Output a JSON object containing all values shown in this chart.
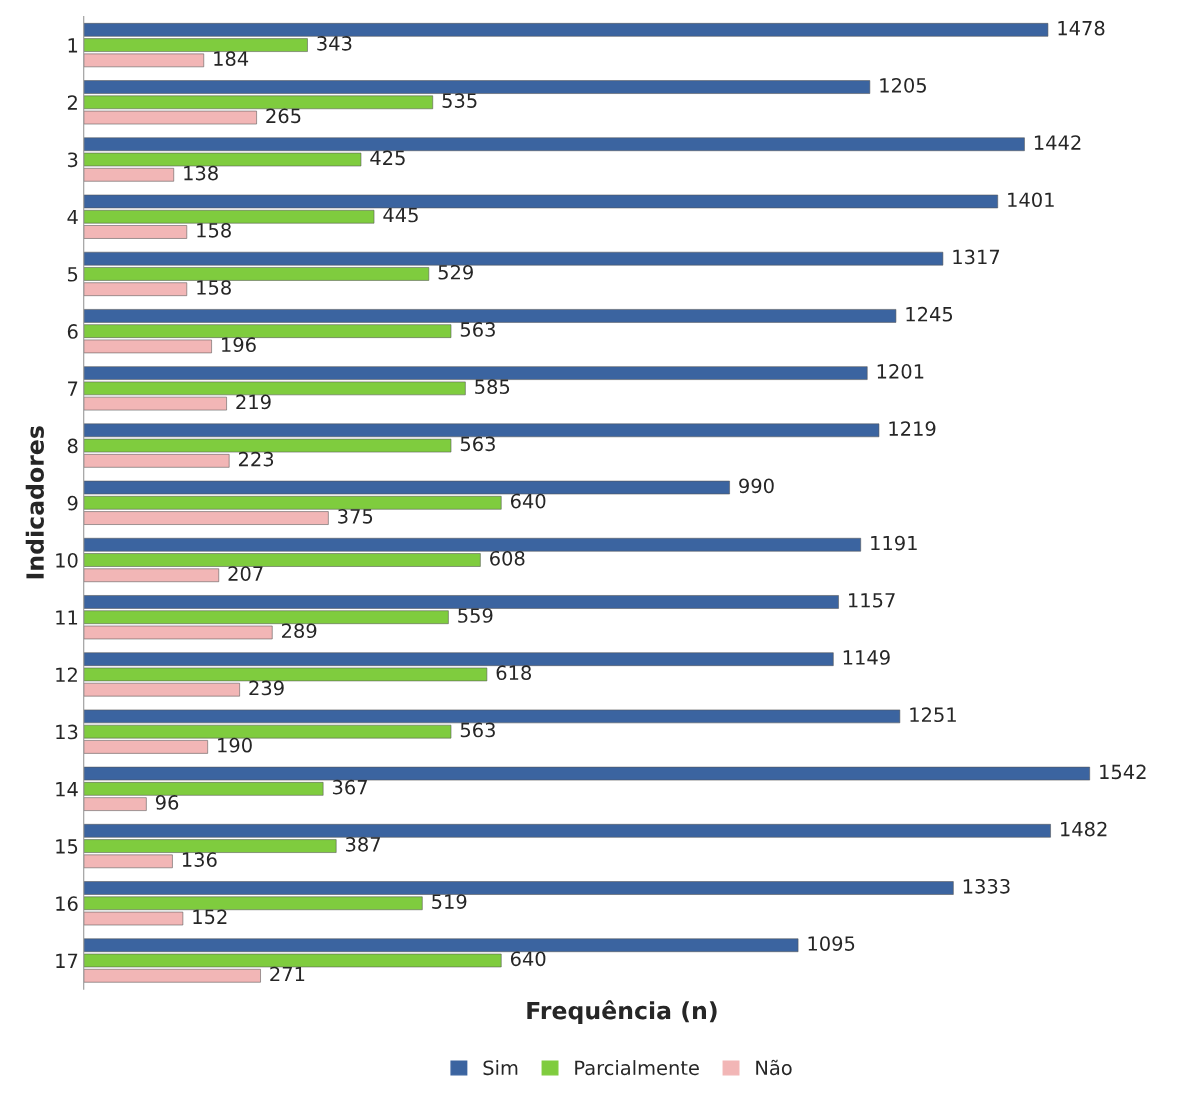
{
  "chart_data": {
    "type": "bar",
    "orientation": "horizontal",
    "xlabel": "Frequência (n)",
    "ylabel": "Indicadores",
    "categories": [
      "1",
      "2",
      "3",
      "4",
      "5",
      "6",
      "7",
      "8",
      "9",
      "10",
      "11",
      "12",
      "13",
      "14",
      "15",
      "16",
      "17"
    ],
    "series": [
      {
        "name": "Sim",
        "color": "#3b64a0",
        "values": [
          1478,
          1205,
          1442,
          1401,
          1317,
          1245,
          1201,
          1219,
          990,
          1191,
          1157,
          1149,
          1251,
          1542,
          1482,
          1333,
          1095
        ]
      },
      {
        "name": "Parcialmente",
        "color": "#7fcc3e",
        "values": [
          343,
          535,
          425,
          445,
          529,
          563,
          585,
          563,
          640,
          608,
          559,
          618,
          563,
          367,
          387,
          519,
          640
        ]
      },
      {
        "name": "Não",
        "color": "#f2b6b6",
        "values": [
          184,
          265,
          138,
          158,
          158,
          196,
          219,
          223,
          375,
          207,
          289,
          239,
          190,
          96,
          136,
          152,
          271
        ]
      }
    ],
    "data_labels": true,
    "legend": "bottom",
    "grid": false,
    "tick_labels": "y"
  }
}
